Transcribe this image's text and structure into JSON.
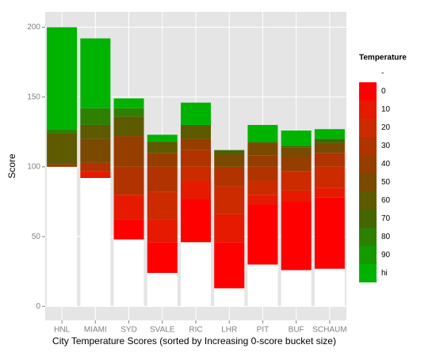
{
  "chart_data": {
    "type": "bar",
    "stacked": true,
    "xlabel": "City Temperature Scores (sorted by Increasing 0-score bucket size)",
    "ylabel": "Score",
    "legend_title": "Temperature",
    "legend_position": "right",
    "grid": true,
    "categories": [
      "HNL",
      "MIAMI",
      "SYD",
      "SVALE",
      "RIC",
      "LHR",
      "PIT",
      "BUF",
      "SCHAUM"
    ],
    "ylim": [
      -10,
      211
    ],
    "yticks": [
      0,
      50,
      100,
      150,
      200
    ],
    "series": [
      {
        "name": "-",
        "color": "#ffffff",
        "values": [
          100,
          92,
          48,
          24,
          46,
          13,
          30,
          26,
          27
        ]
      },
      {
        "name": "0",
        "color": "#ff0000",
        "values": [
          0,
          0,
          14,
          22,
          31,
          33,
          43,
          49,
          51
        ]
      },
      {
        "name": "10",
        "color": "#e61a00",
        "values": [
          0,
          5,
          18,
          16,
          13,
          20,
          7,
          8,
          7
        ]
      },
      {
        "name": "20",
        "color": "#cc2b00",
        "values": [
          0,
          0,
          0,
          20,
          10,
          20,
          10,
          14,
          15
        ]
      },
      {
        "name": "30",
        "color": "#b03300",
        "values": [
          0,
          6,
          20,
          18,
          12,
          14,
          10,
          0,
          10
        ]
      },
      {
        "name": "40",
        "color": "#963d00",
        "values": [
          2,
          0,
          22,
          10,
          8,
          0,
          8,
          10,
          0
        ]
      },
      {
        "name": "50",
        "color": "#7a4a00",
        "values": [
          0,
          17,
          0,
          0,
          0,
          9,
          9,
          7,
          7
        ]
      },
      {
        "name": "60",
        "color": "#5e5a00",
        "values": [
          22,
          10,
          14,
          8,
          10,
          0,
          0,
          0,
          0
        ]
      },
      {
        "name": "70",
        "color": "#446600",
        "values": [
          0,
          0,
          0,
          0,
          0,
          3,
          1,
          1,
          3
        ]
      },
      {
        "name": "80",
        "color": "#2e8000",
        "values": [
          3,
          12,
          6,
          0,
          0,
          0,
          0,
          0,
          0
        ]
      },
      {
        "name": "90",
        "color": "#149a00",
        "values": [
          0,
          0,
          0,
          0,
          0,
          0,
          0,
          0,
          0
        ]
      },
      {
        "name": "hi",
        "color": "#00b300",
        "values": [
          73,
          50,
          7,
          5,
          16,
          0,
          12,
          11,
          7
        ]
      }
    ]
  }
}
